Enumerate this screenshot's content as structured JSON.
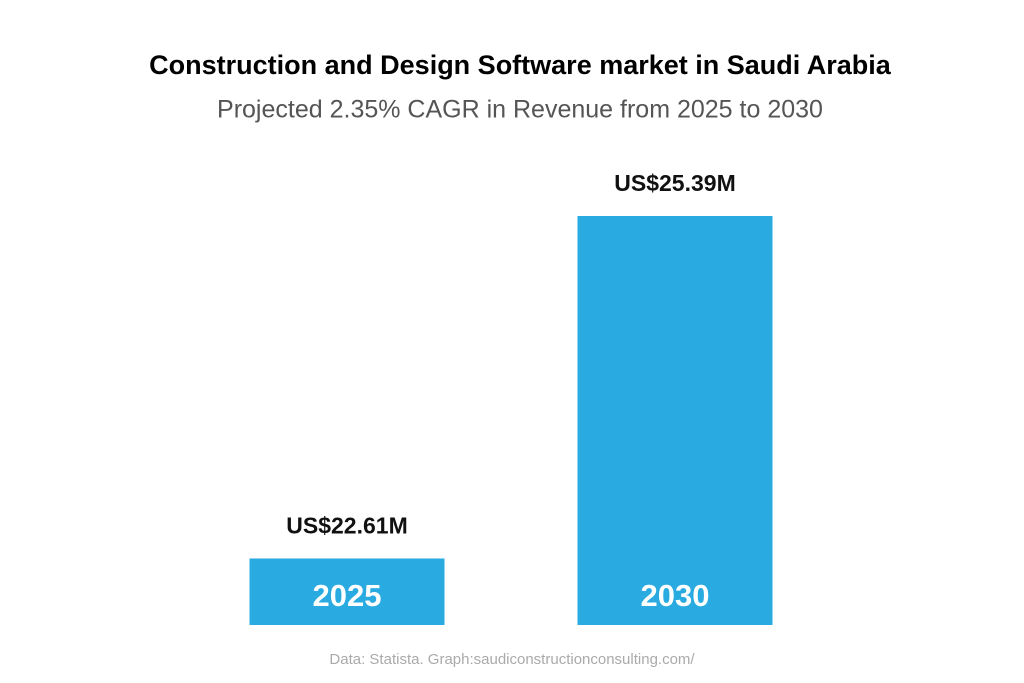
{
  "chart_data": {
    "type": "bar",
    "title": "Construction and Design Software market in Saudi Arabia",
    "subtitle": "Projected 2.35% CAGR in Revenue from 2025 to 2030",
    "categories": [
      "2025",
      "2030"
    ],
    "values": [
      22.61,
      25.39
    ],
    "value_labels": [
      "US$22.61M",
      "US$25.39M"
    ],
    "color": "#29abe2",
    "ylim": [
      22.07,
      25.39
    ],
    "source": "Data: Statista. Graph:saudiconstructionconsulting.com/"
  }
}
